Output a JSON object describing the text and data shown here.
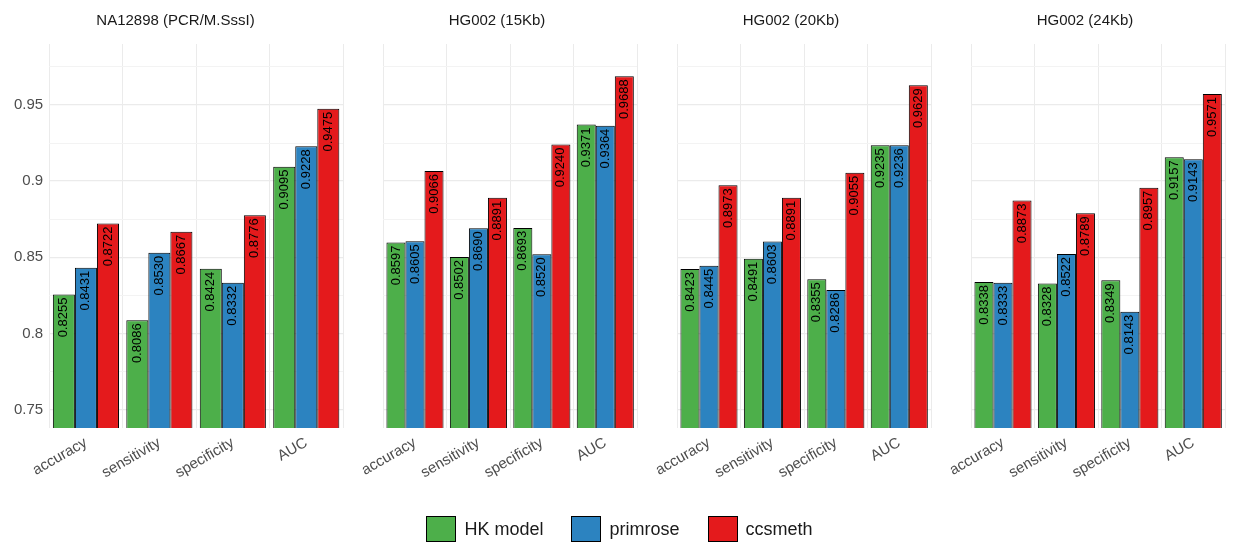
{
  "chart_data": [
    {
      "type": "bar",
      "title": "NA12898 (PCR/M.SssI)",
      "categories": [
        "accuracy",
        "sensitivity",
        "specificity",
        "AUC"
      ],
      "ylim": [
        0.738,
        0.99
      ],
      "yticks": [
        0.75,
        {
          "value": 0.775,
          "label": null
        },
        0.8,
        {
          "value": 0.825,
          "label": null
        },
        0.85,
        {
          "value": 0.875,
          "label": null
        },
        0.9,
        {
          "value": 0.925,
          "label": null
        },
        0.95,
        {
          "value": 0.975,
          "label": null
        }
      ],
      "grid": true,
      "legend": "bottom",
      "series": [
        {
          "name": "HK model",
          "color": "#4daf4a",
          "values": [
            0.8255,
            0.8086,
            0.8424,
            0.9095
          ],
          "value_labels": [
            "0.8255",
            "0.8086",
            "0.8424",
            "0.9095"
          ]
        },
        {
          "name": "primrose",
          "color": "#2c83c0",
          "values": [
            0.8431,
            0.853,
            0.8332,
            0.9228
          ],
          "value_labels": [
            "0.8431",
            "0.8530",
            "0.8332",
            "0.9228"
          ]
        },
        {
          "name": "ccsmeth",
          "color": "#e41a1c",
          "values": [
            0.8722,
            0.8667,
            0.8776,
            0.9475
          ],
          "value_labels": [
            "0.8722",
            "0.8667",
            "0.8776",
            "0.9475"
          ]
        }
      ]
    },
    {
      "type": "bar",
      "title": "HG002 (15Kb)",
      "categories": [
        "accuracy",
        "sensitivity",
        "specificity",
        "AUC"
      ],
      "ylim": [
        0.738,
        0.99
      ],
      "yticks": [
        0.75,
        {
          "value": 0.775,
          "label": null
        },
        0.8,
        {
          "value": 0.825,
          "label": null
        },
        0.85,
        {
          "value": 0.875,
          "label": null
        },
        0.9,
        {
          "value": 0.925,
          "label": null
        },
        0.95,
        {
          "value": 0.975,
          "label": null
        }
      ],
      "grid": true,
      "tick_labels": "x",
      "series": [
        {
          "color": "#4daf4a",
          "values": [
            0.8597,
            0.8502,
            0.8693,
            0.9371
          ],
          "value_labels": [
            "0.8597",
            "0.8502",
            "0.8693",
            "0.9371"
          ]
        },
        {
          "color": "#2c83c0",
          "values": [
            0.8605,
            0.869,
            0.852,
            0.9364
          ],
          "value_labels": [
            "0.8605",
            "0.8690",
            "0.8520",
            "0.9364"
          ]
        },
        {
          "color": "#e41a1c",
          "values": [
            0.9066,
            0.8891,
            0.924,
            0.9688
          ],
          "value_labels": [
            "0.9066",
            "0.8891",
            "0.9240",
            "0.9688"
          ]
        }
      ]
    },
    {
      "type": "bar",
      "title": "HG002 (20Kb)",
      "categories": [
        "accuracy",
        "sensitivity",
        "specificity",
        "AUC"
      ],
      "ylim": [
        0.738,
        0.99
      ],
      "yticks": [
        0.75,
        {
          "value": 0.775,
          "label": null
        },
        0.8,
        {
          "value": 0.825,
          "label": null
        },
        0.85,
        {
          "value": 0.875,
          "label": null
        },
        0.9,
        {
          "value": 0.925,
          "label": null
        },
        0.95,
        {
          "value": 0.975,
          "label": null
        }
      ],
      "grid": true,
      "tick_labels": "x",
      "series": [
        {
          "color": "#4daf4a",
          "values": [
            0.8423,
            0.8491,
            0.8355,
            0.9235
          ],
          "value_labels": [
            "0.8423",
            "0.8491",
            "0.8355",
            "0.9235"
          ]
        },
        {
          "color": "#2c83c0",
          "values": [
            0.8445,
            0.8603,
            0.8286,
            0.9236
          ],
          "value_labels": [
            "0.8445",
            "0.8603",
            "0.8286",
            "0.9236"
          ]
        },
        {
          "color": "#e41a1c",
          "values": [
            0.8973,
            0.8891,
            0.9055,
            0.9629
          ],
          "value_labels": [
            "0.8973",
            "0.8891",
            "0.9055",
            "0.9629"
          ]
        }
      ]
    },
    {
      "type": "bar",
      "title": "HG002 (24Kb)",
      "categories": [
        "accuracy",
        "sensitivity",
        "specificity",
        "AUC"
      ],
      "ylim": [
        0.738,
        0.99
      ],
      "yticks": [
        0.75,
        {
          "value": 0.775,
          "label": null
        },
        0.8,
        {
          "value": 0.825,
          "label": null
        },
        0.85,
        {
          "value": 0.875,
          "label": null
        },
        0.9,
        {
          "value": 0.925,
          "label": null
        },
        0.95,
        {
          "value": 0.975,
          "label": null
        }
      ],
      "grid": true,
      "tick_labels": "x",
      "series": [
        {
          "color": "#4daf4a",
          "values": [
            0.8338,
            0.8328,
            0.8349,
            0.9157
          ],
          "value_labels": [
            "0.8338",
            "0.8328",
            "0.8349",
            "0.9157"
          ]
        },
        {
          "color": "#2c83c0",
          "values": [
            0.8333,
            0.8522,
            0.8143,
            0.9143
          ],
          "value_labels": [
            "0.8333",
            "0.8522",
            "0.8143",
            "0.9143"
          ]
        },
        {
          "color": "#e41a1c",
          "values": [
            0.8873,
            0.8789,
            0.8957,
            0.9571
          ],
          "value_labels": [
            "0.8873",
            "0.8789",
            "0.8957",
            "0.9571"
          ]
        }
      ]
    }
  ]
}
